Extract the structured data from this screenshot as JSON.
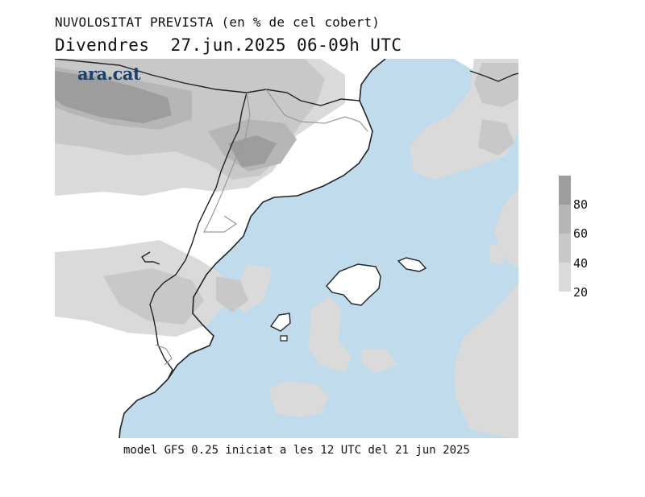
{
  "header": {
    "title": "NUVOLOSITAT PREVISTA (en % de cel cobert)",
    "subtitle": "Divendres  27.jun.2025 06-09h UTC"
  },
  "brand": {
    "logo_text": "ara.cat"
  },
  "legend": {
    "ticks": [
      "80",
      "60",
      "40",
      "20"
    ],
    "colors": {
      "band_80_100": "#9d9d9d",
      "band_60_80": "#b6b6b6",
      "band_40_60": "#c8c8c8",
      "band_20_40": "#dadada",
      "sea": "#bfdbec",
      "land": "#ffffff"
    }
  },
  "footer": {
    "text": "model GFS 0.25 iniciat a les 12 UTC del 21 jun 2025"
  }
}
